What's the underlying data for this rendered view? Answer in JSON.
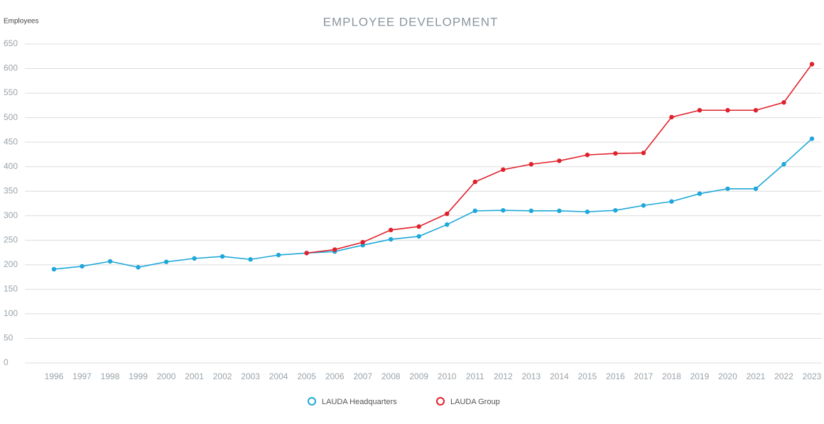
{
  "chart_data": {
    "type": "line",
    "title": "EMPLOYEE DEVELOPMENT",
    "y_label": "Employees",
    "categories": [
      "1996",
      "1997",
      "1998",
      "1999",
      "2000",
      "2001",
      "2002",
      "2003",
      "2004",
      "2005",
      "2006",
      "2007",
      "2008",
      "2009",
      "2010",
      "2011",
      "2012",
      "2013",
      "2014",
      "2015",
      "2016",
      "2017",
      "2018",
      "2019",
      "2020",
      "2021",
      "2022",
      "2023"
    ],
    "series": [
      {
        "name": "LAUDA Headquarters",
        "color": "#1ea7d8",
        "values": [
          191,
          197,
          207,
          195,
          206,
          213,
          217,
          211,
          220,
          224,
          227,
          240,
          252,
          258,
          282,
          310,
          311,
          310,
          310,
          308,
          311,
          321,
          329,
          345,
          355,
          355,
          405,
          457
        ]
      },
      {
        "name": "LAUDA Group",
        "color": "#e0202b",
        "values": [
          null,
          null,
          null,
          null,
          null,
          null,
          null,
          null,
          null,
          224,
          231,
          246,
          271,
          278,
          304,
          369,
          394,
          405,
          412,
          424,
          427,
          428,
          501,
          515,
          515,
          515,
          531,
          609
        ]
      }
    ],
    "ylim": [
      0,
      650
    ],
    "yticks": [
      0,
      50,
      100,
      150,
      200,
      250,
      300,
      350,
      400,
      450,
      500,
      550,
      600,
      650
    ],
    "grid": true,
    "legend": "bottom"
  }
}
